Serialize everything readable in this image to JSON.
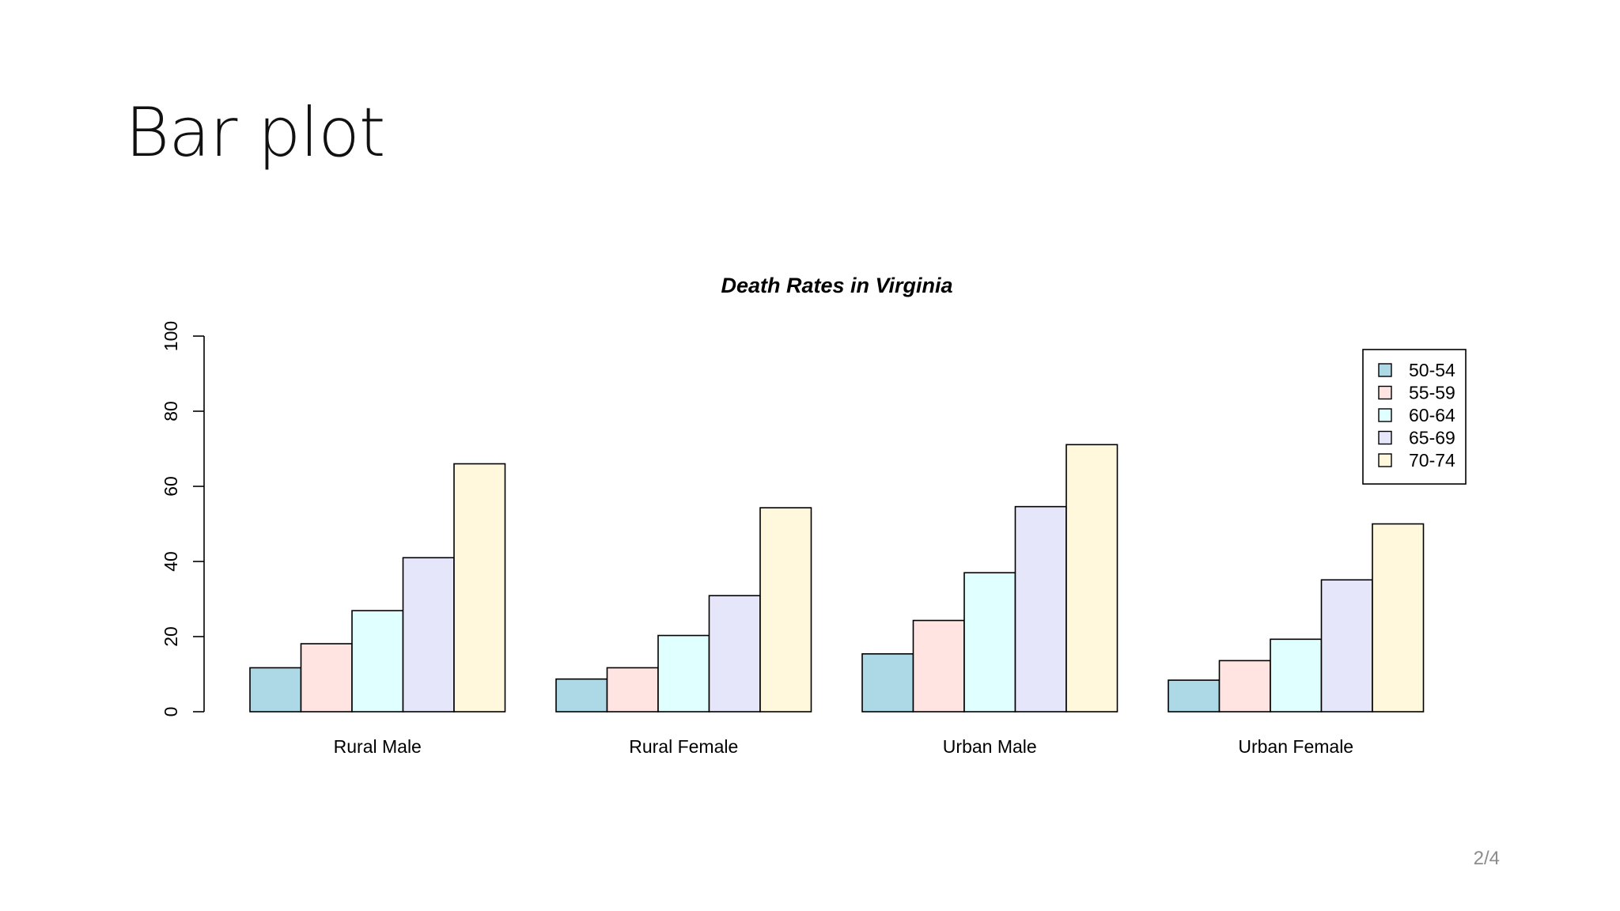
{
  "slide": {
    "title": "Bar plot",
    "page_number": "2/4"
  },
  "chart_data": {
    "type": "bar",
    "title": "Death Rates in Virginia",
    "xlabel": "",
    "ylabel": "",
    "ylim": [
      0,
      100
    ],
    "yticks": [
      0,
      20,
      40,
      60,
      80,
      100
    ],
    "categories": [
      "Rural Male",
      "Rural Female",
      "Urban Male",
      "Urban Female"
    ],
    "series": [
      {
        "name": "50-54",
        "color": "#add8e6",
        "values": [
          11.7,
          8.7,
          15.4,
          8.4
        ]
      },
      {
        "name": "55-59",
        "color": "#ffe4e1",
        "values": [
          18.1,
          11.7,
          24.3,
          13.6
        ]
      },
      {
        "name": "60-64",
        "color": "#e0ffff",
        "values": [
          26.9,
          20.3,
          37.0,
          19.3
        ]
      },
      {
        "name": "65-69",
        "color": "#e6e6fa",
        "values": [
          41.0,
          30.9,
          54.6,
          35.1
        ]
      },
      {
        "name": "70-74",
        "color": "#fff8dc",
        "values": [
          66.0,
          54.3,
          71.1,
          50.0
        ]
      }
    ],
    "grouping": "side-by-side",
    "grid": false,
    "legend_position": "top-right"
  }
}
